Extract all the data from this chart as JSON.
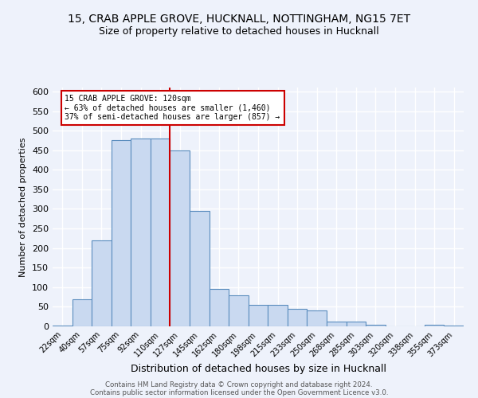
{
  "title": "15, CRAB APPLE GROVE, HUCKNALL, NOTTINGHAM, NG15 7ET",
  "subtitle": "Size of property relative to detached houses in Hucknall",
  "xlabel": "Distribution of detached houses by size in Hucknall",
  "ylabel": "Number of detached properties",
  "footer1": "Contains HM Land Registry data © Crown copyright and database right 2024.",
  "footer2": "Contains public sector information licensed under the Open Government Licence v3.0.",
  "categories": [
    "22sqm",
    "40sqm",
    "57sqm",
    "75sqm",
    "92sqm",
    "110sqm",
    "127sqm",
    "145sqm",
    "162sqm",
    "180sqm",
    "198sqm",
    "215sqm",
    "233sqm",
    "250sqm",
    "268sqm",
    "285sqm",
    "303sqm",
    "320sqm",
    "338sqm",
    "355sqm",
    "373sqm"
  ],
  "values": [
    2,
    70,
    220,
    475,
    480,
    480,
    450,
    295,
    95,
    80,
    55,
    55,
    45,
    40,
    13,
    13,
    5,
    0,
    0,
    5,
    2
  ],
  "bar_color": "#c9d9f0",
  "bar_edge_color": "#5b8dbe",
  "marker_label1": "15 CRAB APPLE GROVE: 120sqm",
  "marker_label2": "← 63% of detached houses are smaller (1,460)",
  "marker_label3": "37% of semi-detached houses are larger (857) →",
  "annotation_box_color": "#ffffff",
  "annotation_box_edge": "#cc0000",
  "vline_color": "#cc0000",
  "vline_x_index": 5.5,
  "ylim": [
    0,
    610
  ],
  "yticks": [
    0,
    50,
    100,
    150,
    200,
    250,
    300,
    350,
    400,
    450,
    500,
    550,
    600
  ],
  "bg_color": "#eef2fb",
  "grid_color": "#ffffff",
  "title_fontsize": 10,
  "subtitle_fontsize": 9
}
